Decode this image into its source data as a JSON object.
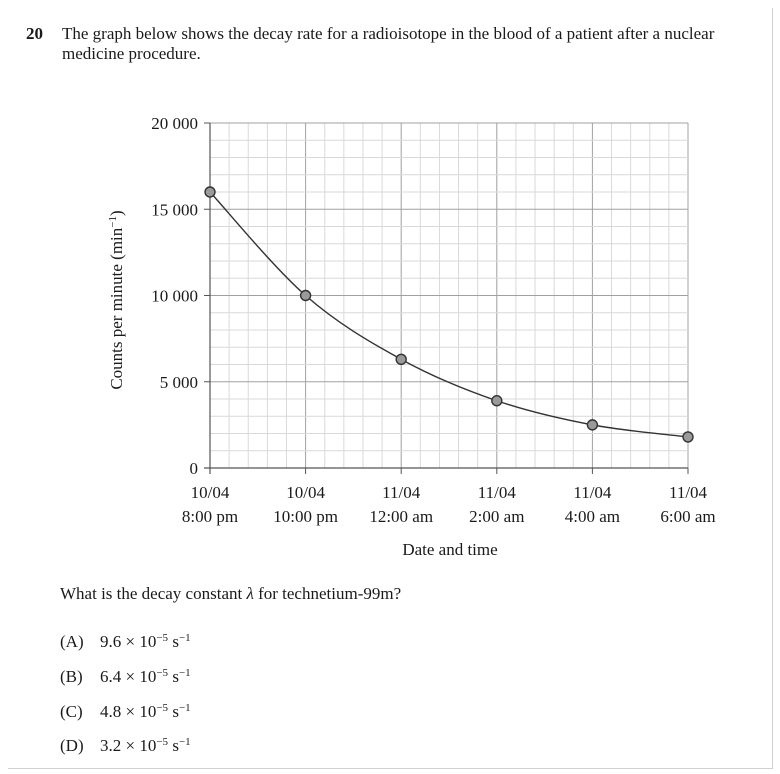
{
  "question": {
    "number": "20",
    "text": "The graph below shows the decay rate for a radioisotope in the blood of a patient after a nuclear medicine procedure.",
    "prompt_before": "What is the decay constant ",
    "prompt_symbol": "λ",
    "prompt_after": " for technetium-99m?"
  },
  "options": [
    {
      "letter": "(A)",
      "mantissa": "9.6 × 10",
      "exp": "−5",
      "unit": " s",
      "unit_exp": "−1"
    },
    {
      "letter": "(B)",
      "mantissa": "6.4 × 10",
      "exp": "−5",
      "unit": " s",
      "unit_exp": "−1"
    },
    {
      "letter": "(C)",
      "mantissa": "4.8 × 10",
      "exp": "−5",
      "unit": " s",
      "unit_exp": "−1"
    },
    {
      "letter": "(D)",
      "mantissa": "3.2 × 10",
      "exp": "−5",
      "unit": " s",
      "unit_exp": "−1"
    }
  ],
  "chart_data": {
    "type": "line",
    "xlabel": "Date and time",
    "ylabel": "Counts per minute (min",
    "ylabel_exp": "−1",
    "ylabel_close": ")",
    "ylim": [
      0,
      20000
    ],
    "xlim": [
      0,
      10
    ],
    "grid": true,
    "y_ticks": [
      {
        "value": 0,
        "label": "0"
      },
      {
        "value": 5000,
        "label": "5 000"
      },
      {
        "value": 10000,
        "label": "10 000"
      },
      {
        "value": 15000,
        "label": "15 000"
      },
      {
        "value": 20000,
        "label": "20 000"
      }
    ],
    "x_ticks": [
      {
        "value": 0,
        "date": "10/04",
        "time": "8:00 pm"
      },
      {
        "value": 2,
        "date": "10/04",
        "time": "10:00 pm"
      },
      {
        "value": 4,
        "date": "11/04",
        "time": "12:00 am"
      },
      {
        "value": 6,
        "date": "11/04",
        "time": "2:00 am"
      },
      {
        "value": 8,
        "date": "11/04",
        "time": "4:00 am"
      },
      {
        "value": 10,
        "date": "11/04",
        "time": "6:00 am"
      }
    ],
    "points": [
      {
        "x": 0,
        "y": 16000
      },
      {
        "x": 2,
        "y": 10000
      },
      {
        "x": 4,
        "y": 6300
      },
      {
        "x": 6,
        "y": 3900
      },
      {
        "x": 8,
        "y": 2500
      },
      {
        "x": 10,
        "y": 1800
      }
    ]
  }
}
